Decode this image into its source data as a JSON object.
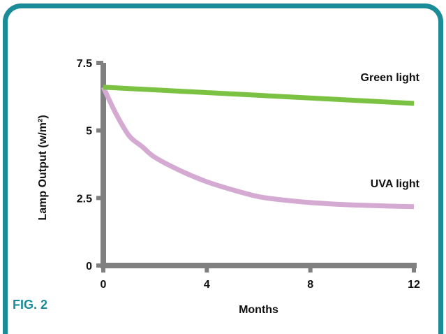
{
  "figure_label": "FIG. 2",
  "colors": {
    "frame": "#1a8c98",
    "axis": "#808080",
    "green_series": "#7cc242",
    "uva_series": "#d4a9d2",
    "text": "#111111"
  },
  "chart_data": {
    "type": "line",
    "xlabel": "Months",
    "ylabel": "Lamp Output (w/m²)",
    "xlim": [
      0,
      12
    ],
    "ylim": [
      0,
      7.5
    ],
    "x_ticks": [
      0,
      4,
      8,
      12
    ],
    "x_tick_labels": [
      "0",
      "4",
      "8",
      "12"
    ],
    "y_ticks": [
      0,
      2.5,
      5,
      7.5
    ],
    "y_tick_labels": [
      "0",
      "2.5",
      "5",
      "7.5"
    ],
    "grid": false,
    "legend": "inline labels at right end of each line",
    "series": [
      {
        "name": "Green light",
        "color": "#7cc242",
        "x": [
          0,
          2,
          4,
          6,
          8,
          10,
          12
        ],
        "y": [
          6.6,
          6.5,
          6.4,
          6.3,
          6.2,
          6.1,
          6.0
        ]
      },
      {
        "name": "UVA light",
        "color": "#d4a9d2",
        "x": [
          0,
          0.5,
          1,
          1.5,
          2,
          3,
          4,
          5,
          6,
          7,
          8,
          9,
          10,
          11,
          12
        ],
        "y": [
          6.6,
          5.6,
          4.8,
          4.4,
          4.0,
          3.5,
          3.1,
          2.8,
          2.55,
          2.42,
          2.33,
          2.27,
          2.23,
          2.2,
          2.18
        ]
      }
    ]
  }
}
